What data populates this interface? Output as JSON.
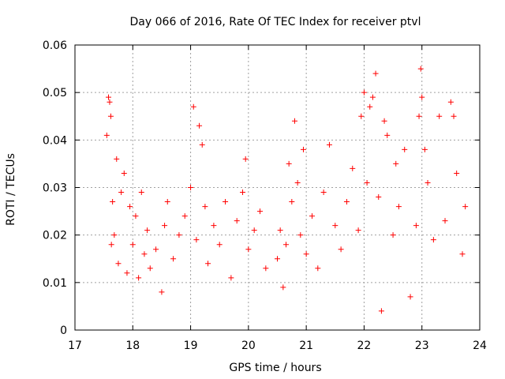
{
  "chart_data": {
    "type": "scatter",
    "title": "Day 066 of 2016, Rate Of TEC Index for receiver ptvl",
    "xlabel": "GPS time / hours",
    "ylabel": "ROTI / TECUs",
    "xlim": [
      17,
      24
    ],
    "ylim": [
      0,
      0.06
    ],
    "x_ticks": [
      17,
      18,
      19,
      20,
      21,
      22,
      23,
      24
    ],
    "x_tick_labels": [
      "17",
      "18",
      "19",
      "20",
      "21",
      "22",
      "23",
      "24"
    ],
    "y_ticks": [
      0,
      0.01,
      0.02,
      0.03,
      0.04,
      0.05,
      0.06
    ],
    "y_tick_labels": [
      "0",
      "0.01",
      "0.02",
      "0.03",
      "0.04",
      "0.05",
      "0.06"
    ],
    "grid": true,
    "marker": "+",
    "series_color": "#ff0000",
    "series": [
      {
        "name": "ROTI",
        "x": [
          17.55,
          17.58,
          17.6,
          17.62,
          17.63,
          17.65,
          17.68,
          17.72,
          17.75,
          17.8,
          17.85,
          17.9,
          17.95,
          18.0,
          18.05,
          18.1,
          18.15,
          18.2,
          18.25,
          18.3,
          18.4,
          18.5,
          18.55,
          18.6,
          18.7,
          18.8,
          18.9,
          19.0,
          19.05,
          19.1,
          19.15,
          19.2,
          19.25,
          19.3,
          19.4,
          19.5,
          19.6,
          19.7,
          19.8,
          19.9,
          19.95,
          20.0,
          20.1,
          20.2,
          20.3,
          20.5,
          20.55,
          20.6,
          20.65,
          20.7,
          20.75,
          20.8,
          20.85,
          20.9,
          20.95,
          21.0,
          21.1,
          21.2,
          21.3,
          21.4,
          21.5,
          21.6,
          21.7,
          21.8,
          21.9,
          21.95,
          22.0,
          22.05,
          22.1,
          22.15,
          22.2,
          22.25,
          22.3,
          22.35,
          22.4,
          22.5,
          22.55,
          22.6,
          22.7,
          22.8,
          22.9,
          22.95,
          22.98,
          23.0,
          23.05,
          23.1,
          23.2,
          23.3,
          23.4,
          23.5,
          23.55,
          23.6,
          23.7,
          23.75
        ],
        "y": [
          0.041,
          0.049,
          0.048,
          0.045,
          0.018,
          0.027,
          0.02,
          0.036,
          0.014,
          0.029,
          0.033,
          0.012,
          0.026,
          0.018,
          0.024,
          0.011,
          0.029,
          0.016,
          0.021,
          0.013,
          0.017,
          0.008,
          0.022,
          0.027,
          0.015,
          0.02,
          0.024,
          0.03,
          0.047,
          0.019,
          0.043,
          0.039,
          0.026,
          0.014,
          0.022,
          0.018,
          0.027,
          0.011,
          0.023,
          0.029,
          0.036,
          0.017,
          0.021,
          0.025,
          0.013,
          0.015,
          0.021,
          0.009,
          0.018,
          0.035,
          0.027,
          0.044,
          0.031,
          0.02,
          0.038,
          0.016,
          0.024,
          0.013,
          0.029,
          0.039,
          0.022,
          0.017,
          0.027,
          0.034,
          0.021,
          0.045,
          0.05,
          0.031,
          0.047,
          0.049,
          0.054,
          0.028,
          0.004,
          0.044,
          0.041,
          0.02,
          0.035,
          0.026,
          0.038,
          0.007,
          0.022,
          0.045,
          0.055,
          0.049,
          0.038,
          0.031,
          0.019,
          0.045,
          0.023,
          0.048,
          0.045,
          0.033,
          0.016,
          0.026
        ]
      }
    ]
  }
}
